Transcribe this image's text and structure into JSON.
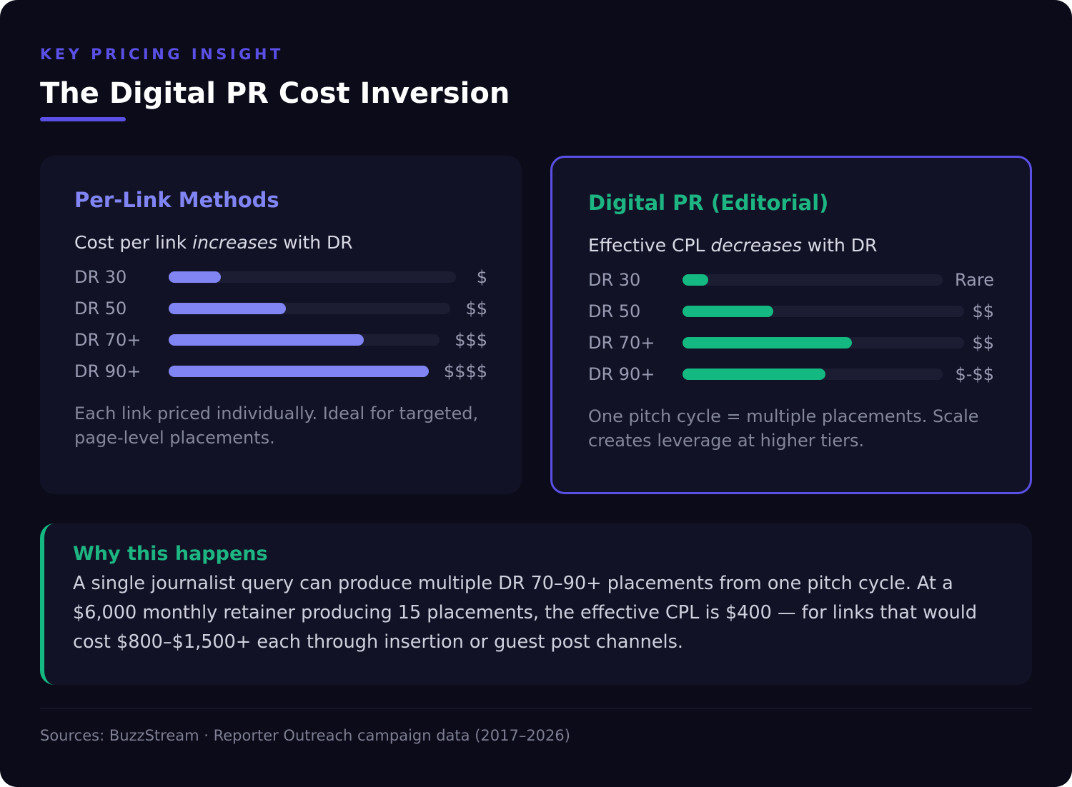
{
  "header": {
    "kicker": "KEY PRICING INSIGHT",
    "title": "The Digital PR Cost Inversion"
  },
  "left_panel": {
    "title": "Per-Link Methods",
    "subtitle_before": "Cost per link ",
    "subtitle_emphasis": "increases",
    "subtitle_after": " with DR",
    "note": "Each link priced individually. Ideal for targeted, page-level placements."
  },
  "right_panel": {
    "title": "Digital PR (Editorial)",
    "subtitle_before": "Effective CPL ",
    "subtitle_emphasis": "decreases",
    "subtitle_after": " with DR",
    "note": "One pitch cycle = multiple placements. Scale creates leverage at higher tiers."
  },
  "why": {
    "title": "Why this happens",
    "body": "A single journalist query can produce multiple DR 70–90+ placements from one pitch cycle. At a $6,000 monthly retainer producing 15 placements, the effective CPL is $400 — for links that would cost $800–$1,500+ each through insertion or guest post channels."
  },
  "footer": {
    "sources": "Sources: BuzzStream · Reporter Outreach campaign data (2017–2026)"
  },
  "colors": {
    "accent": "#5b50e6",
    "per_link_bar": "#8185f4",
    "digital_pr_bar": "#13b981"
  },
  "chart_data": [
    {
      "type": "bar",
      "orientation": "horizontal",
      "title": "Per-Link Methods",
      "categories": [
        "DR 30",
        "DR 50",
        "DR 70+",
        "DR 90+"
      ],
      "values": [
        0.2,
        0.45,
        0.75,
        1.0
      ],
      "value_labels": [
        "$",
        "$$",
        "$$$",
        "$$$$"
      ],
      "ylim": [
        0,
        1
      ]
    },
    {
      "type": "bar",
      "orientation": "horizontal",
      "title": "Digital PR (Editorial)",
      "categories": [
        "DR 30",
        "DR 50",
        "DR 70+",
        "DR 90+"
      ],
      "values": [
        0.1,
        0.35,
        0.65,
        0.55
      ],
      "value_labels": [
        "Rare",
        "$$",
        "$$",
        "$-$$"
      ],
      "ylim": [
        0,
        1
      ]
    }
  ]
}
